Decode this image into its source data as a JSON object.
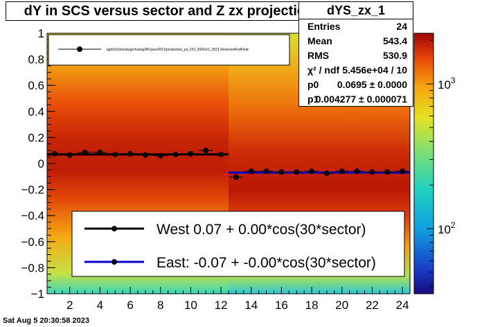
{
  "chart_data": {
    "type": "heatmap",
    "title": "dY in SCS versus sector and Z zx projection",
    "xlim": [
      0.5,
      24.5
    ],
    "ylim": [
      -1,
      1
    ],
    "xticks": [
      2,
      4,
      6,
      8,
      10,
      12,
      14,
      16,
      18,
      20,
      22,
      24
    ],
    "yticks": [
      -1,
      -0.8,
      -0.6,
      -0.4,
      -0.2,
      0,
      0.2,
      0.4,
      0.6,
      0.8,
      1
    ],
    "colorbar": {
      "scale": "log",
      "tick_labels": [
        "10^2",
        "10^3"
      ]
    },
    "points": {
      "x": [
        1,
        2,
        3,
        4,
        5,
        6,
        7,
        8,
        9,
        10,
        11,
        12,
        13,
        14,
        15,
        16,
        17,
        18,
        19,
        20,
        21,
        22,
        23,
        24
      ],
      "y": [
        0.075,
        0.065,
        0.085,
        0.085,
        0.07,
        0.075,
        0.065,
        0.06,
        0.07,
        0.075,
        0.1,
        0.07,
        -0.105,
        -0.06,
        -0.06,
        -0.065,
        -0.065,
        -0.06,
        -0.075,
        -0.06,
        -0.06,
        -0.065,
        -0.065,
        -0.06
      ]
    },
    "fits": [
      {
        "name": "West",
        "x_range": [
          0.5,
          12.5
        ],
        "y": 0.07,
        "color": "#000000"
      },
      {
        "name": "East",
        "x_range": [
          12.5,
          24.5
        ],
        "y": -0.07,
        "color": "#0000cc"
      }
    ],
    "legend_top": {
      "entry": "/gpfs01/star/pwg/chsang/RF/year2021/production_ps_OO_200GeV_2021.ReversedFullField",
      "placement": "top-left"
    },
    "legend": [
      {
        "label": "West  0.07 +  0.00*cos(30*sector)",
        "color": "#000000"
      },
      {
        "label": "East: -0.07 + -0.00*cos(30*sector)",
        "color": "#0000cc"
      }
    ]
  },
  "stats": {
    "name": "dYS_zx_1",
    "rows": [
      {
        "key": "Entries",
        "value": "24"
      },
      {
        "key": "Mean",
        "value": "543.4"
      },
      {
        "key": "RMS",
        "value": "530.9"
      },
      {
        "key": "χ² / ndf",
        "value": "5.456e+04 / 10"
      },
      {
        "key": "p0",
        "value": "0.0695  ± 0.0000"
      },
      {
        "key": "p1",
        "value": "0.004277  ± 0.000071"
      }
    ]
  },
  "footer": {
    "date": "Sat Aug  5 20:30:58 2023"
  }
}
